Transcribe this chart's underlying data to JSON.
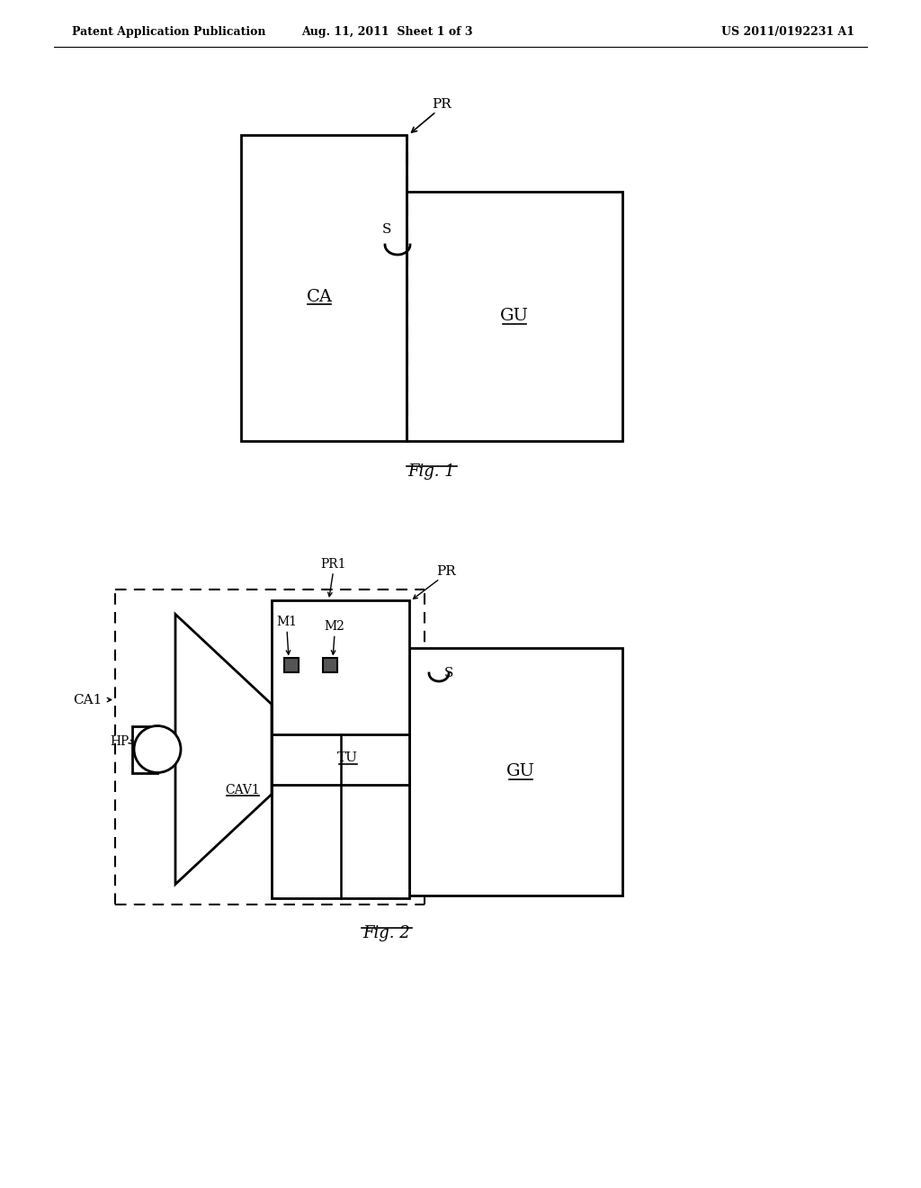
{
  "header_left": "Patent Application Publication",
  "header_center": "Aug. 11, 2011  Sheet 1 of 3",
  "header_right": "US 2011/0192231 A1",
  "fig1_caption": "Fig. 1",
  "fig2_caption": "Fig. 2",
  "bg_color": "#ffffff",
  "line_color": "#000000"
}
